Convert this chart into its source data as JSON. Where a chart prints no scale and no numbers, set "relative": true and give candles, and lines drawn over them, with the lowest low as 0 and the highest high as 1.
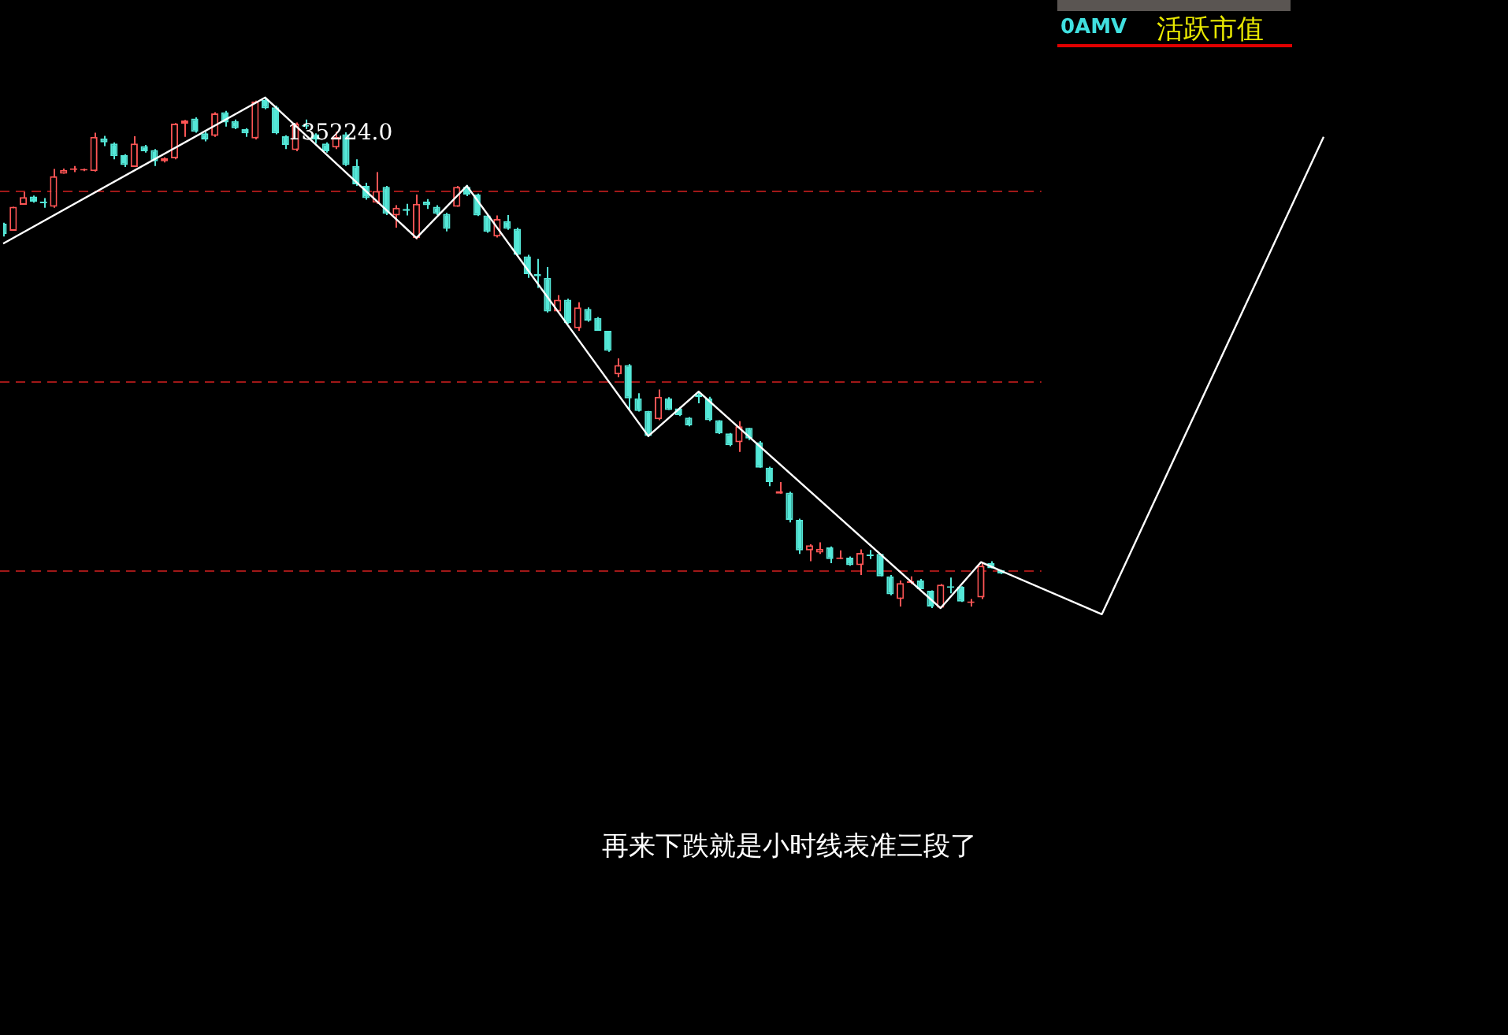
{
  "chart_data": {
    "type": "candlestick",
    "relative": true,
    "title": "活跃市值",
    "subtitle": "0AMV",
    "categories": [
      null,
      null,
      null,
      null,
      null,
      null,
      null,
      null,
      null,
      null,
      null,
      null,
      null,
      null,
      null,
      null,
      null,
      null,
      null,
      null,
      null,
      null,
      null,
      null,
      null,
      null,
      null,
      null,
      null,
      null,
      null,
      null,
      null,
      null,
      null,
      null,
      null,
      null,
      null,
      null,
      null,
      null,
      null,
      null,
      null,
      null,
      null,
      null,
      null,
      null,
      null,
      null,
      null,
      null,
      null,
      null,
      null,
      null,
      null,
      null,
      null,
      null,
      null,
      null,
      null,
      null,
      null,
      null,
      null,
      null,
      null,
      null,
      null,
      null,
      null,
      null,
      null,
      null,
      null,
      null,
      null,
      null,
      null,
      null,
      null,
      null,
      null,
      null,
      null,
      null,
      null,
      null,
      null,
      null,
      null,
      null,
      null,
      null,
      null,
      null,
      null,
      null,
      null,
      null,
      null,
      null,
      null,
      null,
      null,
      null,
      null,
      null,
      null,
      null,
      null,
      null,
      null,
      null,
      null,
      null,
      null,
      null,
      null,
      null,
      null,
      null,
      null,
      null,
      null,
      null,
      null,
      null
    ],
    "series": [
      {
        "type": "candlestick",
        "colors": [
          "#54e8d8",
          "#ff5555",
          "#ff5555",
          "#54e8d8",
          "#54e8d8",
          "#ff5555",
          "#ff5555",
          "#ff5555",
          "#ff5555",
          "#ff5555",
          "#54e8d8",
          "#54e8d8",
          "#54e8d8",
          "#ff5555",
          "#54e8d8",
          "#54e8d8",
          "#ff5555",
          "#ff5555",
          "#ff5555",
          "#54e8d8",
          "#54e8d8",
          "#ff5555",
          "#54e8d8",
          "#54e8d8",
          "#54e8d8",
          "#ff5555",
          "#54e8d8",
          "#54e8d8",
          "#54e8d8",
          "#ff5555",
          "#54e8d8",
          "#54e8d8",
          "#54e8d8",
          "#ff5555",
          "#54e8d8",
          "#54e8d8",
          "#54e8d8",
          "#ff5555",
          "#54e8d8",
          "#ff5555",
          "#54e8d8",
          "#ff5555",
          "#54e8d8",
          "#54e8d8",
          "#54e8d8",
          "#ff5555",
          "#54e8d8",
          "#54e8d8",
          "#54e8d8",
          "#ff5555",
          "#54e8d8",
          "#54e8d8",
          "#54e8d8",
          "#54e8d8",
          "#54e8d8",
          "#ff5555",
          "#54e8d8",
          "#ff5555",
          "#54e8d8",
          "#54e8d8",
          "#54e8d8",
          "#ff5555",
          "#54e8d8",
          "#54e8d8",
          "#54e8d8",
          "#ff5555",
          "#54e8d8",
          "#54e8d8",
          "#54e8d8",
          "#54e8d8",
          "#54e8d8",
          "#54e8d8",
          "#54e8d8",
          "#ff5555",
          "#54e8d8",
          "#54e8d8",
          "#54e8d8",
          "#ff5555",
          "#54e8d8",
          "#54e8d8",
          "#ff5555",
          "#ff5555",
          "#54e8d8",
          "#ff5555",
          "#54e8d8",
          "#ff5555",
          "#54e8d8",
          "#54e8d8",
          "#54e8d8",
          "#ff5555",
          "#ff5555",
          "#54e8d8",
          "#54e8d8",
          "#ff5555",
          "#54e8d8",
          "#54e8d8",
          "#ff5555",
          "#ff5555",
          "#54e8d8",
          "#54e8d8",
          null,
          null,
          null,
          null,
          null,
          null,
          null,
          null,
          null,
          null,
          null,
          null,
          null,
          null,
          null,
          null,
          null,
          null,
          null,
          null,
          null,
          null,
          null,
          null,
          null,
          null,
          null,
          null,
          null,
          null,
          null,
          null
        ],
        "ohlc": [
          [
            0.753,
            0.755,
            0.728,
            0.733
          ],
          [
            0.739,
            0.786,
            0.739,
            0.786
          ],
          [
            0.79,
            0.815,
            0.79,
            0.805
          ],
          [
            0.806,
            0.808,
            0.794,
            0.796
          ],
          [
            0.795,
            0.803,
            0.784,
            0.793
          ],
          [
            0.786,
            0.86,
            0.784,
            0.846
          ],
          [
            0.851,
            0.861,
            0.851,
            0.858
          ],
          [
            0.858,
            0.866,
            0.854,
            0.86
          ],
          [
            0.857,
            0.861,
            0.856,
            0.858
          ],
          [
            0.856,
            0.931,
            0.855,
            0.923
          ],
          [
            0.92,
            0.925,
            0.905,
            0.912
          ],
          [
            0.91,
            0.912,
            0.879,
            0.885
          ],
          [
            0.887,
            0.889,
            0.864,
            0.868
          ],
          [
            0.864,
            0.924,
            0.864,
            0.91
          ],
          [
            0.905,
            0.907,
            0.892,
            0.895
          ],
          [
            0.897,
            0.899,
            0.866,
            0.875
          ],
          [
            0.875,
            0.883,
            0.873,
            0.881
          ],
          [
            0.881,
            0.95,
            0.879,
            0.949
          ],
          [
            0.949,
            0.956,
            0.923,
            0.955
          ],
          [
            0.959,
            0.961,
            0.931,
            0.933
          ],
          [
            0.93,
            0.933,
            0.914,
            0.918
          ],
          [
            0.925,
            0.971,
            0.923,
            0.969
          ],
          [
            0.971,
            0.974,
            0.943,
            0.951
          ],
          [
            0.954,
            0.957,
            0.938,
            0.94
          ],
          [
            0.938,
            0.94,
            0.923,
            0.93
          ],
          [
            0.92,
            0.994,
            0.918,
            0.992
          ],
          [
            0.995,
            1.0,
            0.977,
            0.979
          ],
          [
            0.981,
            0.984,
            0.928,
            0.93
          ],
          [
            0.924,
            0.926,
            0.899,
            0.907
          ],
          [
            0.897,
            0.951,
            0.895,
            0.949
          ],
          [
            0.945,
            0.957,
            0.938,
            0.943
          ],
          [
            0.928,
            0.93,
            0.91,
            0.918
          ],
          [
            0.91,
            0.912,
            0.892,
            0.895
          ],
          [
            0.902,
            0.933,
            0.899,
            0.923
          ],
          [
            0.928,
            0.932,
            0.866,
            0.868
          ],
          [
            0.866,
            0.879,
            0.827,
            0.83
          ],
          [
            0.827,
            0.833,
            0.8,
            0.803
          ],
          [
            0.794,
            0.854,
            0.792,
            0.817
          ],
          [
            0.825,
            0.827,
            0.77,
            0.772
          ],
          [
            0.769,
            0.789,
            0.745,
            0.784
          ],
          [
            0.782,
            0.792,
            0.769,
            0.778
          ],
          [
            0.725,
            0.81,
            0.722,
            0.792
          ],
          [
            0.796,
            0.801,
            0.782,
            0.789
          ],
          [
            0.786,
            0.789,
            0.77,
            0.772
          ],
          [
            0.772,
            0.774,
            0.738,
            0.743
          ],
          [
            0.786,
            0.827,
            0.786,
            0.825
          ],
          [
            0.825,
            0.829,
            0.807,
            0.81
          ],
          [
            0.81,
            0.812,
            0.768,
            0.769
          ],
          [
            0.769,
            0.771,
            0.735,
            0.737
          ],
          [
            0.728,
            0.769,
            0.726,
            0.762
          ],
          [
            0.758,
            0.77,
            0.741,
            0.743
          ],
          [
            0.743,
            0.745,
            0.69,
            0.692
          ],
          [
            0.689,
            0.692,
            0.647,
            0.654
          ],
          [
            0.654,
            0.684,
            0.627,
            0.65
          ],
          [
            0.647,
            0.668,
            0.579,
            0.581
          ],
          [
            0.581,
            0.613,
            0.579,
            0.604
          ],
          [
            0.604,
            0.606,
            0.557,
            0.558
          ],
          [
            0.548,
            0.599,
            0.543,
            0.589
          ],
          [
            0.586,
            0.589,
            0.561,
            0.563
          ],
          [
            0.568,
            0.57,
            0.543,
            0.543
          ],
          [
            0.543,
            0.543,
            0.502,
            0.504
          ],
          [
            0.458,
            0.489,
            0.452,
            0.476
          ],
          [
            0.476,
            0.478,
            0.388,
            0.411
          ],
          [
            0.411,
            0.421,
            0.385,
            0.386
          ],
          [
            0.386,
            0.386,
            0.335,
            0.337
          ],
          [
            0.37,
            0.428,
            0.368,
            0.414
          ],
          [
            0.411,
            0.413,
            0.388,
            0.388
          ],
          [
            0.391,
            0.394,
            0.376,
            0.378
          ],
          [
            0.373,
            0.374,
            0.356,
            0.358
          ],
          [
            0.419,
            0.424,
            0.401,
            0.413
          ],
          [
            0.411,
            0.414,
            0.366,
            0.368
          ],
          [
            0.368,
            0.368,
            0.341,
            0.342
          ],
          [
            0.342,
            0.343,
            0.317,
            0.319
          ],
          [
            0.325,
            0.366,
            0.306,
            0.356
          ],
          [
            0.353,
            0.353,
            0.329,
            0.332
          ],
          [
            0.325,
            0.327,
            0.275,
            0.275
          ],
          [
            0.275,
            0.277,
            0.239,
            0.247
          ],
          [
            0.224,
            0.247,
            0.224,
            0.229
          ],
          [
            0.226,
            0.228,
            0.168,
            0.173
          ],
          [
            0.173,
            0.175,
            0.106,
            0.113
          ],
          [
            0.113,
            0.125,
            0.092,
            0.123
          ],
          [
            0.109,
            0.129,
            0.106,
            0.116
          ],
          [
            0.119,
            0.121,
            0.088,
            0.096
          ],
          [
            0.096,
            0.113,
            0.096,
            0.099
          ],
          [
            0.099,
            0.101,
            0.083,
            0.084
          ],
          [
            0.084,
            0.115,
            0.065,
            0.108
          ],
          [
            0.105,
            0.114,
            0.096,
            0.102
          ],
          [
            0.106,
            0.106,
            0.062,
            0.062
          ],
          [
            0.062,
            0.065,
            0.025,
            0.027
          ],
          [
            0.018,
            0.054,
            0.003,
            0.049
          ],
          [
            0.049,
            0.062,
            0.047,
            0.053
          ],
          [
            0.054,
            0.057,
            0.037,
            0.037
          ],
          [
            0.034,
            0.035,
            0.0,
            0.003
          ],
          [
            0.001,
            0.047,
            0.0,
            0.046
          ],
          [
            0.043,
            0.06,
            0.029,
            0.04
          ],
          [
            0.042,
            0.043,
            0.012,
            0.013
          ],
          [
            0.01,
            0.018,
            0.003,
            0.012
          ],
          [
            0.021,
            0.09,
            0.018,
            0.083
          ],
          [
            0.088,
            0.092,
            0.078,
            0.078
          ],
          [
            0.074,
            0.075,
            0.067,
            0.068
          ],
          null,
          null,
          null,
          null,
          null,
          null,
          null,
          null,
          null,
          null,
          null,
          null,
          null,
          null,
          null,
          null,
          null,
          null,
          null,
          null,
          null,
          null,
          null,
          null,
          null,
          null,
          null,
          null,
          null,
          null,
          null,
          null
        ]
      },
      {
        "type": "line",
        "color": "#ffffff",
        "values": [
          0.714,
          null,
          null,
          null,
          null,
          null,
          null,
          null,
          null,
          null,
          null,
          null,
          null,
          null,
          null,
          null,
          null,
          null,
          null,
          null,
          null,
          null,
          null,
          null,
          null,
          null,
          1.0,
          null,
          null,
          null,
          null,
          null,
          null,
          null,
          null,
          null,
          null,
          null,
          null,
          null,
          null,
          0.725,
          null,
          null,
          null,
          null,
          0.827,
          null,
          null,
          null,
          null,
          null,
          null,
          null,
          null,
          null,
          null,
          null,
          null,
          null,
          null,
          null,
          null,
          null,
          0.337,
          null,
          null,
          null,
          null,
          0.424,
          null,
          null,
          null,
          null,
          null,
          null,
          null,
          null,
          null,
          null,
          null,
          null,
          null,
          null,
          null,
          null,
          null,
          null,
          null,
          null,
          null,
          null,
          null,
          0,
          null,
          null,
          null,
          0.09,
          null,
          null,
          null,
          null,
          null,
          null,
          null,
          null,
          null,
          null,
          null,
          -0.012,
          null,
          null,
          null,
          null,
          null,
          null,
          null,
          null,
          null,
          null,
          null,
          null,
          null,
          null,
          null,
          null,
          null,
          null,
          null,
          null,
          null,
          0.923
        ]
      }
    ],
    "ref_lines": [
      {
        "axis": "y",
        "value": 0.818,
        "color": "#a01818",
        "line_style": "dashed"
      },
      {
        "axis": "y",
        "value": 0.444,
        "color": "#a01818",
        "line_style": "dashed"
      },
      {
        "axis": "y",
        "value": 0.074,
        "color": "#a01818",
        "line_style": "dashed"
      }
    ],
    "annotations": [
      "135224.0",
      "再来下跌就是小时线表准三段了"
    ],
    "marker": "none",
    "line_style": "solid",
    "grid": false,
    "legend": false
  }
}
